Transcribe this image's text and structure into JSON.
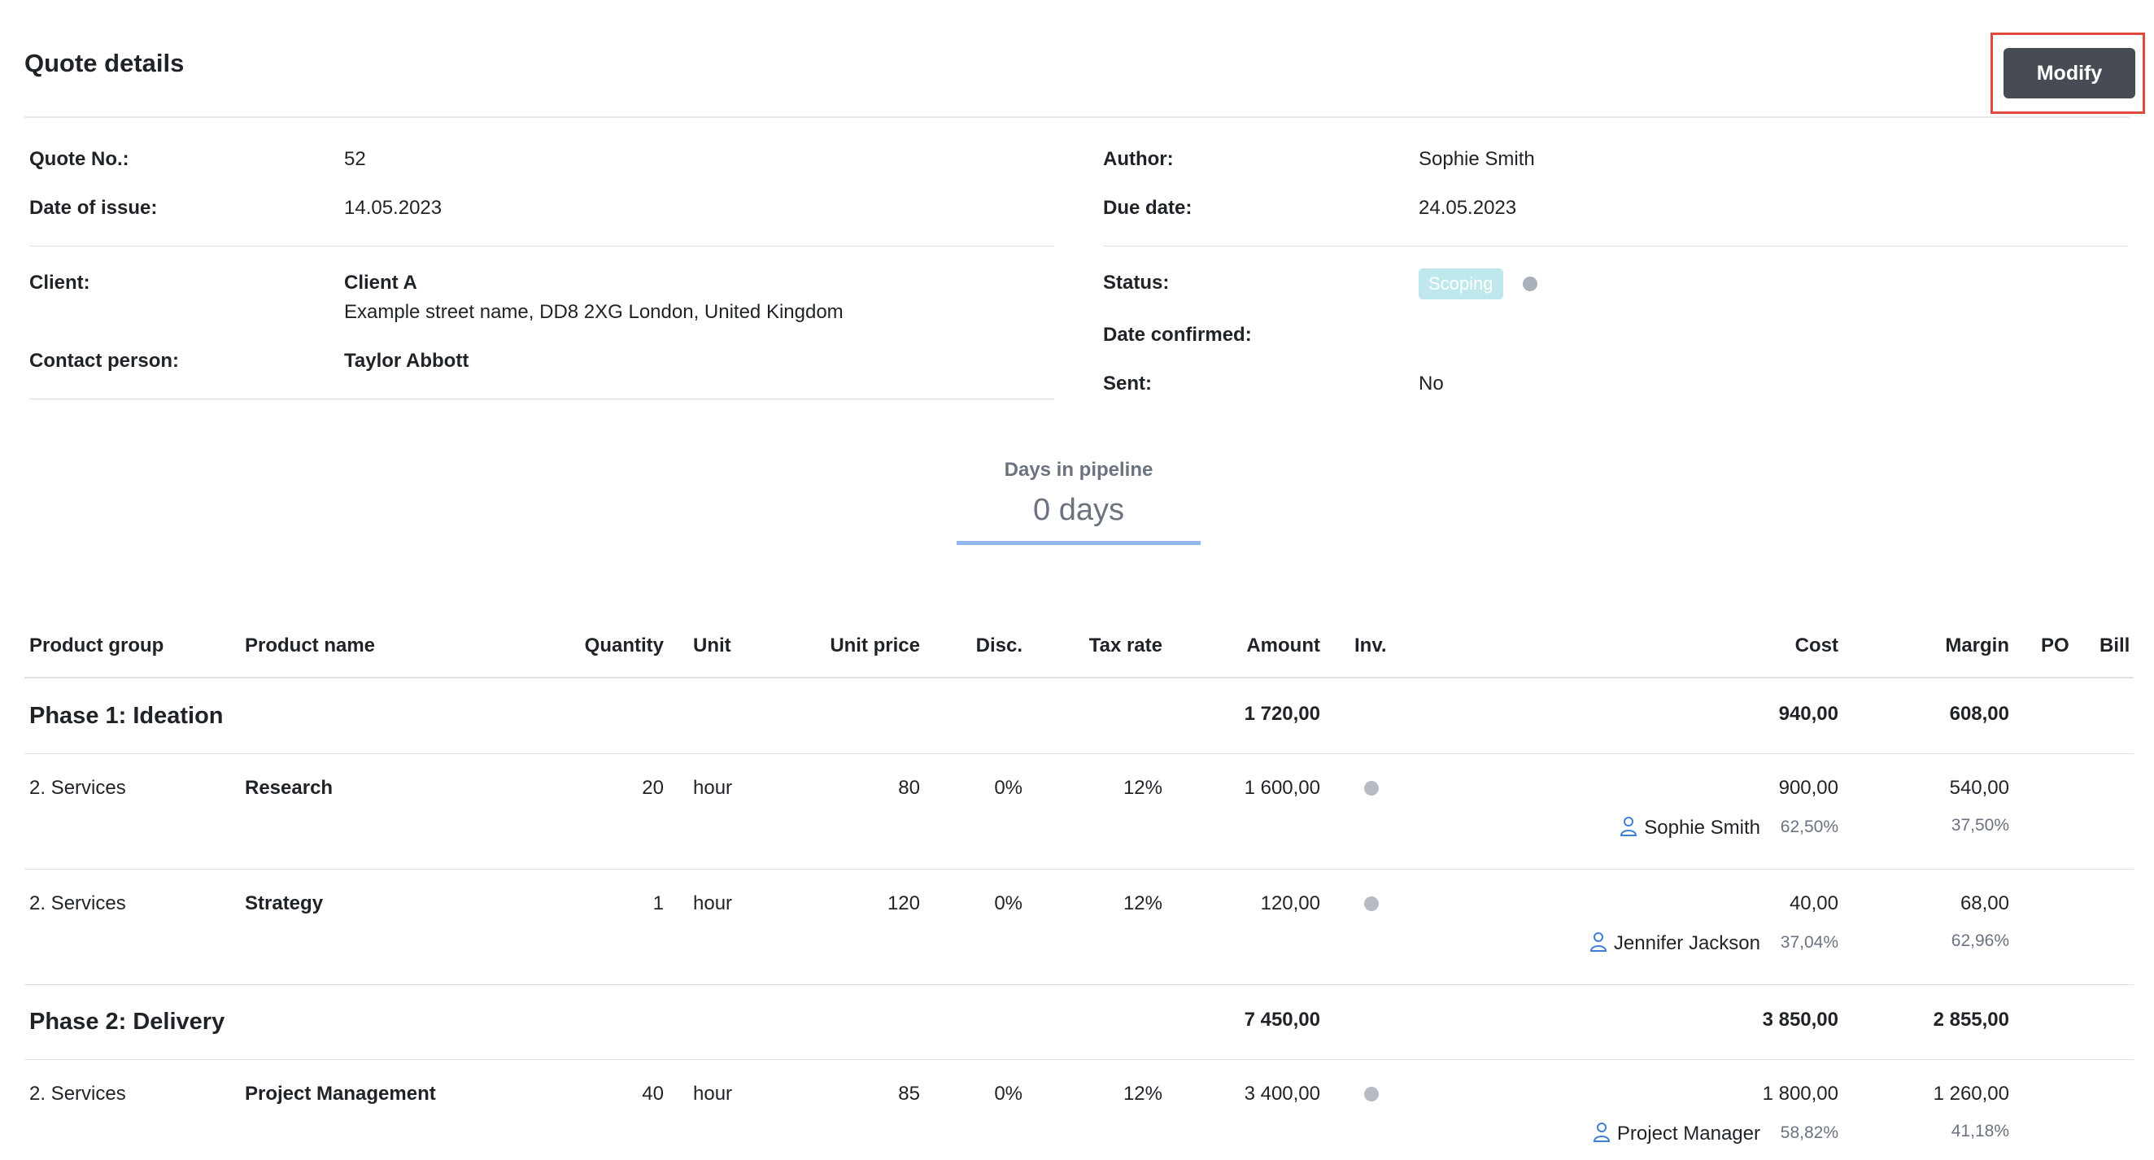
{
  "header": {
    "title": "Quote details",
    "modify_label": "Modify"
  },
  "details": {
    "quote_no_label": "Quote No.:",
    "quote_no": "52",
    "date_issue_label": "Date of issue:",
    "date_issue": "14.05.2023",
    "client_label": "Client:",
    "client_name": "Client A",
    "client_address": "Example street name, DD8 2XG London, United Kingdom",
    "contact_label": "Contact person:",
    "contact": "Taylor Abbott",
    "author_label": "Author:",
    "author": "Sophie Smith",
    "due_label": "Due date:",
    "due": "24.05.2023",
    "status_label": "Status:",
    "status": "Scoping",
    "confirmed_label": "Date confirmed:",
    "sent_label": "Sent:",
    "sent": "No"
  },
  "pipeline": {
    "label": "Days in pipeline",
    "value": "0 days"
  },
  "table": {
    "headers": {
      "group": "Product group",
      "name": "Product name",
      "qty": "Quantity",
      "unit": "Unit",
      "unit_price": "Unit price",
      "disc": "Disc.",
      "tax": "Tax rate",
      "amount": "Amount",
      "inv": "Inv.",
      "cost": "Cost",
      "margin": "Margin",
      "po": "PO",
      "bill": "Bill"
    },
    "phases": [
      {
        "title": "Phase 1: Ideation",
        "amount": "1 720,00",
        "cost": "940,00",
        "margin": "608,00"
      },
      {
        "title": "Phase 2: Delivery",
        "amount": "7 450,00",
        "cost": "3 850,00",
        "margin": "2 855,00"
      }
    ],
    "rows": [
      {
        "group": "2. Services",
        "name": "Research",
        "qty": "20",
        "unit": "hour",
        "unit_price": "80",
        "disc": "0%",
        "tax": "12%",
        "amount": "1 600,00",
        "cost": "900,00",
        "margin": "540,00",
        "assignee": "Sophie Smith",
        "cost_pct": "62,50%",
        "margin_pct": "37,50%"
      },
      {
        "group": "2. Services",
        "name": "Strategy",
        "qty": "1",
        "unit": "hour",
        "unit_price": "120",
        "disc": "0%",
        "tax": "12%",
        "amount": "120,00",
        "cost": "40,00",
        "margin": "68,00",
        "assignee": "Jennifer Jackson",
        "cost_pct": "37,04%",
        "margin_pct": "62,96%"
      },
      {
        "group": "2. Services",
        "name": "Project Management",
        "qty": "40",
        "unit": "hour",
        "unit_price": "85",
        "disc": "0%",
        "tax": "12%",
        "amount": "3 400,00",
        "cost": "1 800,00",
        "margin": "1 260,00",
        "assignee": "Project Manager",
        "cost_pct": "58,82%",
        "margin_pct": "41,18%"
      }
    ]
  },
  "colors": {
    "accent_button": "#464b54",
    "highlight_border": "#e24a3b",
    "status_badge": "#bfe8ec",
    "pipeline_bar": "#8fb6ee",
    "person_icon": "#3f7fd6"
  }
}
